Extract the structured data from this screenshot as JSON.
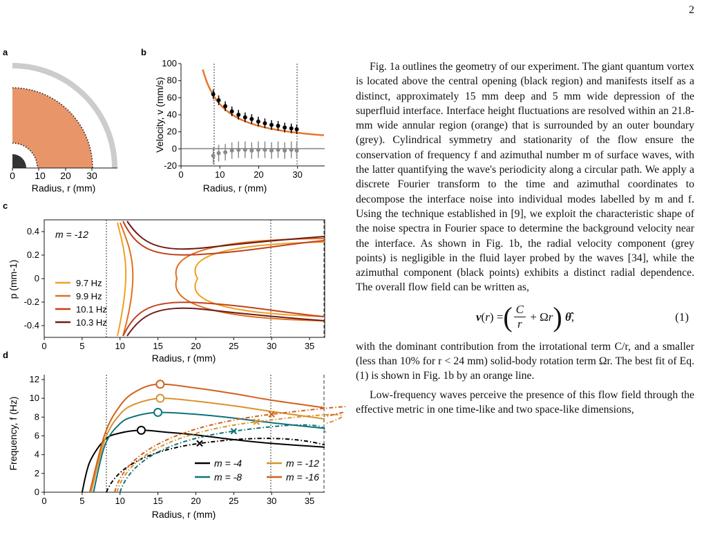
{
  "page_number": "2",
  "panels": {
    "a": {
      "label": "a",
      "xlabel": "Radius, r (mm)",
      "ticks": [
        "0",
        "10",
        "20",
        "30"
      ]
    },
    "b": {
      "label": "b",
      "ylabel": "Velocity, v (mm/s)",
      "xlabel": "Radius, r (mm)",
      "xticks": [
        "0",
        "10",
        "20",
        "30"
      ],
      "yticks": [
        "100",
        "80",
        "60",
        "40",
        "20",
        "0",
        "-20"
      ]
    },
    "c": {
      "label": "c",
      "ylabel": "p (mm-1)",
      "xlabel": "Radius, r (mm)",
      "annotation": "m = -12",
      "xticks": [
        "0",
        "5",
        "10",
        "15",
        "20",
        "25",
        "30",
        "35"
      ],
      "yticks": [
        "0.4",
        "0.2",
        "0",
        "-0.2",
        "-0.4"
      ],
      "legend": [
        {
          "name": "9.7 Hz",
          "color": "#f0a020"
        },
        {
          "name": "9.9 Hz",
          "color": "#e07020"
        },
        {
          "name": "10.1 Hz",
          "color": "#c0401e"
        },
        {
          "name": "10.3 Hz",
          "color": "#6e1a16"
        }
      ]
    },
    "d": {
      "label": "d",
      "ylabel": "Frequency, f (Hz)",
      "xlabel": "Radius, r (mm)",
      "xticks": [
        "0",
        "5",
        "10",
        "15",
        "20",
        "25",
        "30",
        "35"
      ],
      "yticks": [
        "12",
        "10",
        "8",
        "6",
        "4",
        "2",
        "0"
      ],
      "legend": [
        {
          "name": "m = -4",
          "color": "#000000"
        },
        {
          "name": "m = -12",
          "color": "#d8922c"
        },
        {
          "name": "m = -8",
          "color": "#0e7277"
        },
        {
          "name": "m = -16",
          "color": "#d2601a"
        }
      ]
    }
  },
  "chart_data": [
    {
      "type": "scatter",
      "panel": "b",
      "xlabel": "Radius, r (mm)",
      "ylabel": "Velocity, v (mm/s)",
      "ylim": [
        -20,
        100
      ],
      "xlim": [
        0,
        37
      ],
      "series": [
        {
          "values_x": [
            8.3,
            9.7,
            11.4,
            13.1,
            14.8,
            16.5,
            18.2,
            19.9,
            21.6,
            23.3,
            25,
            26.7,
            28.4,
            29.8
          ],
          "values_y": [
            64,
            57,
            50,
            44,
            40,
            37,
            35,
            32,
            30,
            28,
            27,
            25,
            24,
            23
          ]
        },
        {
          "values_x": [
            8.3,
            9.7,
            11.4,
            13.1,
            14.8,
            16.5,
            18.2,
            19.9,
            21.6,
            23.3,
            25,
            26.7,
            28.4,
            29.8
          ],
          "values_y": [
            -8,
            -5,
            -4,
            -2,
            -1,
            -1,
            -2,
            -1,
            -1,
            -2,
            -1,
            -2,
            -1,
            -2
          ]
        }
      ]
    },
    {
      "type": "line",
      "panel": "d",
      "xlabel": "Radius, r (mm)",
      "ylabel": "Frequency, f (Hz)",
      "ylim": [
        0,
        12
      ],
      "xlim": [
        0,
        37
      ],
      "series": [
        {
          "name": "m = -4",
          "x": [
            5,
            6,
            8,
            10,
            12.8,
            16,
            20,
            25,
            30,
            37
          ],
          "values": [
            0,
            3.2,
            5.6,
            6.3,
            6.6,
            6.4,
            6.1,
            5.6,
            5.2,
            4.8
          ]
        },
        {
          "name": "m = -8",
          "x": [
            6.5,
            8,
            10,
            12,
            15,
            20,
            25,
            30,
            37
          ],
          "values": [
            0,
            5.0,
            7.3,
            8.1,
            8.5,
            8.3,
            7.9,
            7.4,
            6.8
          ]
        },
        {
          "name": "m = -12",
          "x": [
            6.2,
            8,
            10,
            12,
            15.3,
            20,
            25,
            30,
            37
          ],
          "values": [
            0,
            5.6,
            8.3,
            9.4,
            10.0,
            9.7,
            9.2,
            8.6,
            7.8
          ]
        },
        {
          "name": "m = -16",
          "x": [
            6,
            8,
            10,
            12,
            15,
            20,
            25,
            30,
            37
          ],
          "values": [
            0,
            6.2,
            9.2,
            10.7,
            11.5,
            11.1,
            10.5,
            9.8,
            9.0
          ]
        }
      ]
    }
  ],
  "paragraph1": "Fig. 1a outlines the geometry of our experiment. The giant quantum vortex is located above the central opening (black region) and manifests itself as a distinct, approximately 15 mm deep and 5 mm wide depression of the superfluid interface. Interface height fluctuations are resolved within an 21.8-mm wide annular region (orange) that is surrounded by an outer boundary (grey). Cylindrical symmetry and stationarity of the flow ensure the conservation of frequency f and azimuthal number m of surface waves, with the latter quantifying the wave's periodicity along a circular path. We apply a discrete Fourier transform to the time and azimuthal coordinates to decompose the interface noise into individual modes labelled by m and f. Using the technique established in [9], we exploit the characteristic shape of the noise spectra in Fourier space to determine the background velocity near the interface. As shown in Fig. 1b, the radial velocity component (grey points) is negligible in the fluid layer probed by the waves [34], while the azimuthal component (black points) exhibits a distinct radial dependence. The overall flow field can be written as,",
  "equation_number": "(1)",
  "paragraph2": "with the dominant contribution from the irrotational term C/r, and a smaller (less than 10% for r < 24 mm) solid-body rotation term Ωr. The best fit of Eq. (1) is shown in Fig. 1b by an orange line.",
  "paragraph3": "Low-frequency waves perceive the presence of this flow field through the effective metric in one time-like and two space-like dimensions,"
}
